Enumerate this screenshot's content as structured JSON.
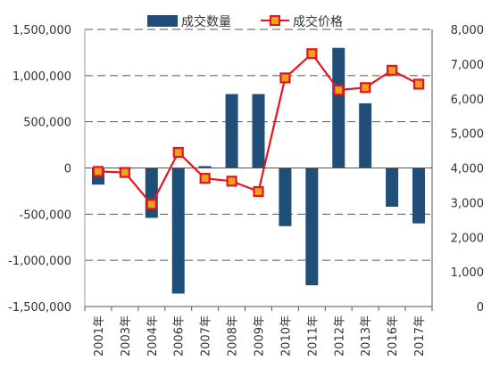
{
  "chart_data": {
    "type": "bar+line",
    "categories": [
      "2001年",
      "2003年",
      "2004年",
      "2006年",
      "2007年",
      "2008年",
      "2009年",
      "2010年",
      "2011年",
      "2012年",
      "2013年",
      "2016年",
      "2017年"
    ],
    "series": [
      {
        "name": "成交数量",
        "type": "bar",
        "axis": "left",
        "color": "#1f4e79",
        "values": [
          -180000,
          -10000,
          -540000,
          -1360000,
          20000,
          800000,
          800000,
          -630000,
          -1270000,
          1300000,
          700000,
          -420000,
          -600000
        ]
      },
      {
        "name": "成交价格",
        "type": "line",
        "axis": "right",
        "color": "#e8141d",
        "marker_fill": "#f0a020",
        "values": [
          3900,
          3870,
          2950,
          4450,
          3700,
          3620,
          3320,
          6600,
          7300,
          6250,
          6320,
          6820,
          6420
        ]
      }
    ],
    "y_left": {
      "lim": [
        -1500000,
        1500000
      ],
      "ticks": [
        1500000,
        1000000,
        500000,
        0,
        -500000,
        -1000000,
        -1500000
      ],
      "tick_labels": [
        "1,500,000",
        "1,000,000",
        "500,000",
        "0",
        "-500,000",
        "-1,000,000",
        "-1,500,000"
      ]
    },
    "y_right": {
      "lim": [
        0,
        8000
      ],
      "ticks": [
        8000,
        7000,
        6000,
        5000,
        4000,
        3000,
        2000,
        1000,
        0
      ],
      "tick_labels": [
        "8,000",
        "7,000",
        "6,000",
        "5,000",
        "4,000",
        "3,000",
        "2,000",
        "1,000",
        "0"
      ]
    },
    "grid": "dashed-horizontal",
    "legend": "top-center"
  }
}
